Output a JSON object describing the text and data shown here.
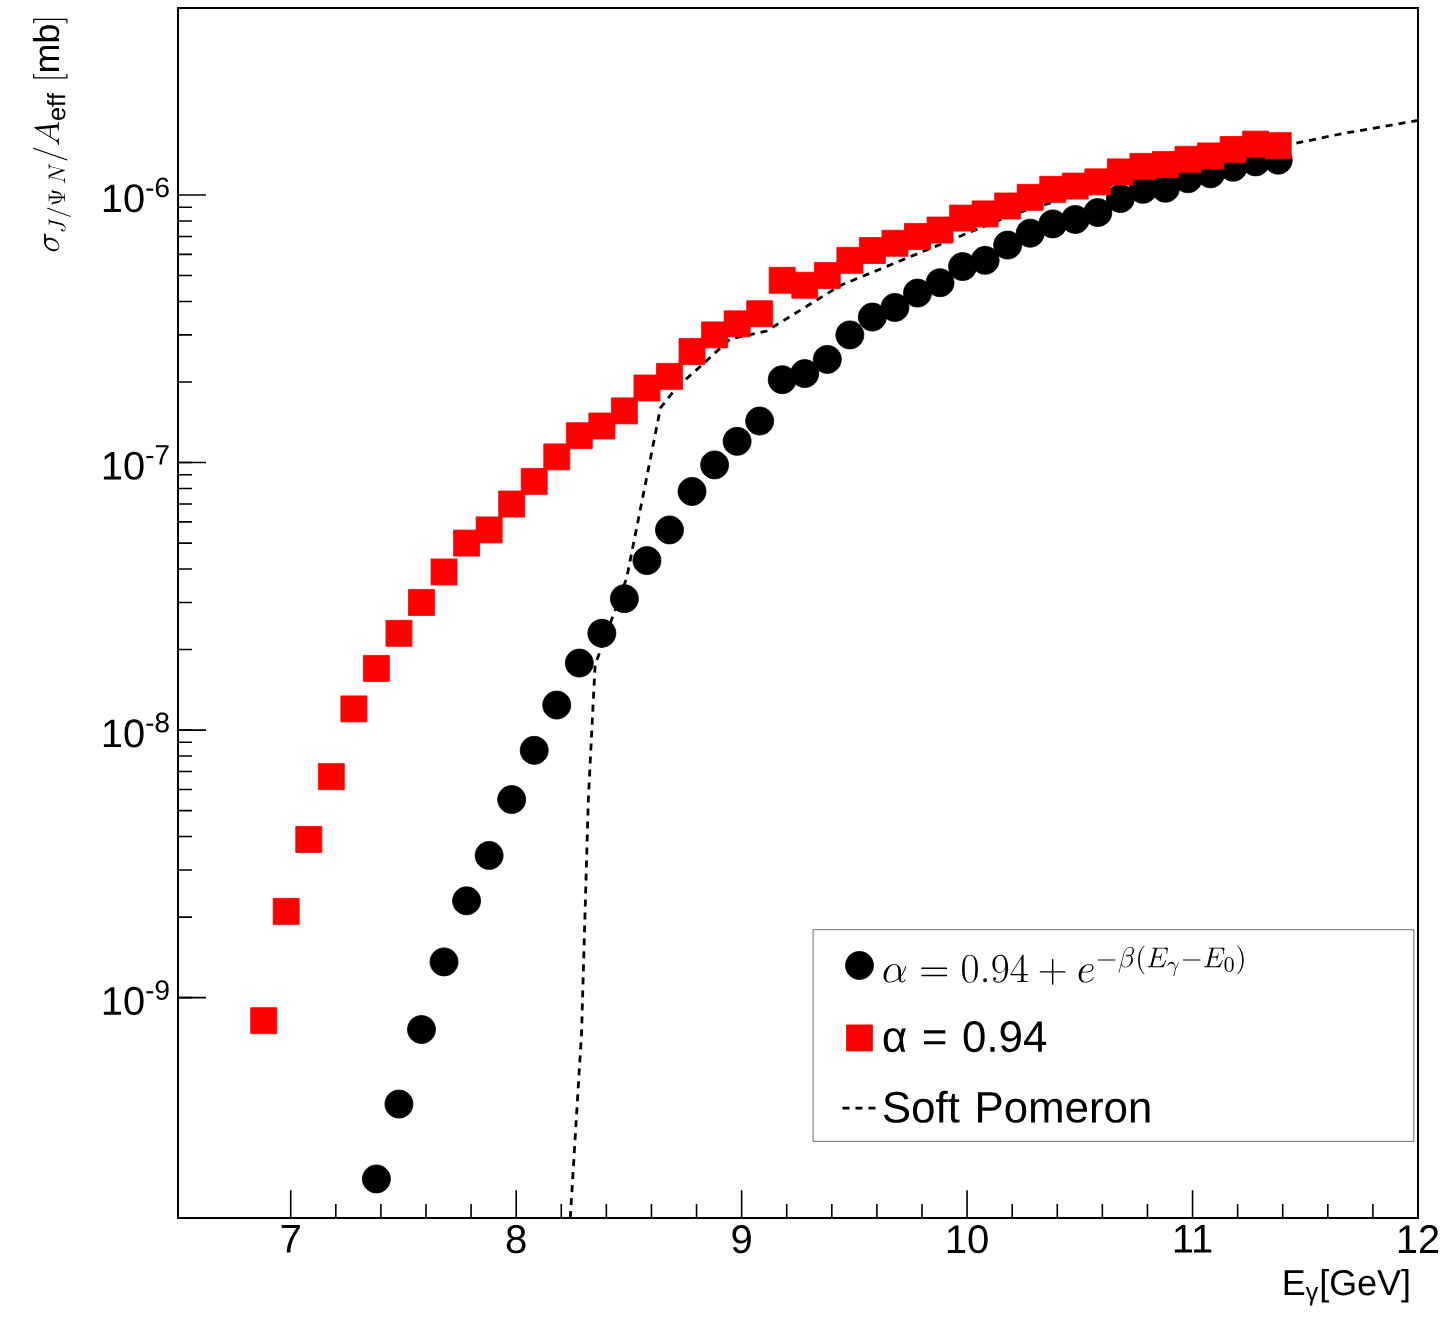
{
  "chart_data": {
    "type": "scatter",
    "xlabel": "E$_{γ}$[GeV]",
    "ylabel": "\\sigma_{J/\\Psi\\,N}/A_{\\mathrm{eff}}\\ [\\mathrm{mb}]",
    "log": "y",
    "grid": false,
    "legend": "bottom right",
    "xlim": [
      6.5,
      12
    ],
    "xticks": [
      7,
      8,
      9,
      10,
      11,
      12
    ],
    "ylim": [
      1.5e-10,
      5e-06
    ],
    "yticks": [
      {
        "value": 1e-09,
        "label": "10$^{-9}$"
      },
      {
        "value": 1e-08,
        "label": "10$^{-8}$"
      },
      {
        "value": 1e-07,
        "label": "10$^{-7}$"
      },
      {
        "value": 1e-06,
        "label": "10$^{-6}$"
      }
    ],
    "series": [
      {
        "name": "\\alpha = 0.94 + e^{-\\beta(E_{\\gamma} - E_{0})}",
        "marker": "circle",
        "color": "#000000",
        "x": [
          7.38,
          7.48,
          7.58,
          7.68,
          7.78,
          7.88,
          7.98,
          8.08,
          8.18,
          8.28,
          8.38,
          8.48,
          8.58,
          8.68,
          8.78,
          8.88,
          8.98,
          9.08,
          9.18,
          9.28,
          9.38,
          9.48,
          9.58,
          9.68,
          9.78,
          9.88,
          9.98,
          10.08,
          10.18,
          10.28,
          10.38,
          10.48,
          10.58,
          10.68,
          10.78,
          10.88,
          10.98,
          11.08,
          11.18,
          11.28,
          11.38
        ],
        "values": [
          2.1e-10,
          4e-10,
          7.6e-10,
          1.36e-09,
          2.3e-09,
          3.4e-09,
          5.5e-09,
          8.4e-09,
          1.24e-08,
          1.78e-08,
          2.3e-08,
          3.1e-08,
          4.3e-08,
          5.6e-08,
          7.8e-08,
          9.8e-08,
          1.2e-07,
          1.43e-07,
          2.04e-07,
          2.15e-07,
          2.43e-07,
          3e-07,
          3.5e-07,
          3.8e-07,
          4.3e-07,
          4.7e-07,
          5.4e-07,
          5.7e-07,
          6.5e-07,
          7.2e-07,
          7.8e-07,
          8.1e-07,
          8.6e-07,
          9.7e-07,
          1.05e-06,
          1.06e-06,
          1.15e-06,
          1.2e-06,
          1.27e-06,
          1.33e-06,
          1.35e-06
        ]
      },
      {
        "name": "α = 0.94",
        "marker": "square",
        "color": "#ff0000",
        "x": [
          6.88,
          6.98,
          7.08,
          7.18,
          7.28,
          7.38,
          7.48,
          7.58,
          7.68,
          7.78,
          7.88,
          7.98,
          8.08,
          8.18,
          8.28,
          8.38,
          8.48,
          8.58,
          8.68,
          8.78,
          8.88,
          8.98,
          9.08,
          9.18,
          9.28,
          9.38,
          9.48,
          9.58,
          9.68,
          9.78,
          9.88,
          9.98,
          10.08,
          10.18,
          10.28,
          10.38,
          10.48,
          10.58,
          10.68,
          10.78,
          10.88,
          10.98,
          11.08,
          11.18,
          11.28,
          11.38
        ],
        "values": [
          8.2e-10,
          2.1e-09,
          3.9e-09,
          6.7e-09,
          1.2e-08,
          1.7e-08,
          2.3e-08,
          3e-08,
          3.9e-08,
          5e-08,
          5.6e-08,
          7e-08,
          8.5e-08,
          1.05e-07,
          1.26e-07,
          1.37e-07,
          1.56e-07,
          1.9e-07,
          2.1e-07,
          2.6e-07,
          3e-07,
          3.3e-07,
          3.6e-07,
          4.8e-07,
          4.6e-07,
          5e-07,
          5.7e-07,
          6.2e-07,
          6.6e-07,
          7e-07,
          7.4e-07,
          8.2e-07,
          8.5e-07,
          9.1e-07,
          9.8e-07,
          1.05e-06,
          1.08e-06,
          1.12e-06,
          1.22e-06,
          1.28e-06,
          1.3e-06,
          1.36e-06,
          1.4e-06,
          1.48e-06,
          1.55e-06,
          1.53e-06
        ]
      },
      {
        "name": "Soft Pomeron",
        "type": "line",
        "marker": "none",
        "line_style": "dotted",
        "color": "#000000",
        "x": [
          8.24,
          8.29,
          8.32,
          8.35,
          8.49,
          8.59,
          8.64,
          8.71,
          8.82,
          8.95,
          9.11,
          9.44,
          10.21,
          10.65,
          11.09,
          11.44,
          11.67,
          12.0
        ],
        "values": [
          1.5e-10,
          7.4e-10,
          5.5e-09,
          1.75e-08,
          3.7e-08,
          9.8e-08,
          1.6e-07,
          1.9e-07,
          2.3e-07,
          2.9e-07,
          3.1e-07,
          4.6e-07,
          8.5e-07,
          1.1e-06,
          1.3e-06,
          1.55e-06,
          1.7e-06,
          1.9e-06
        ]
      }
    ]
  }
}
